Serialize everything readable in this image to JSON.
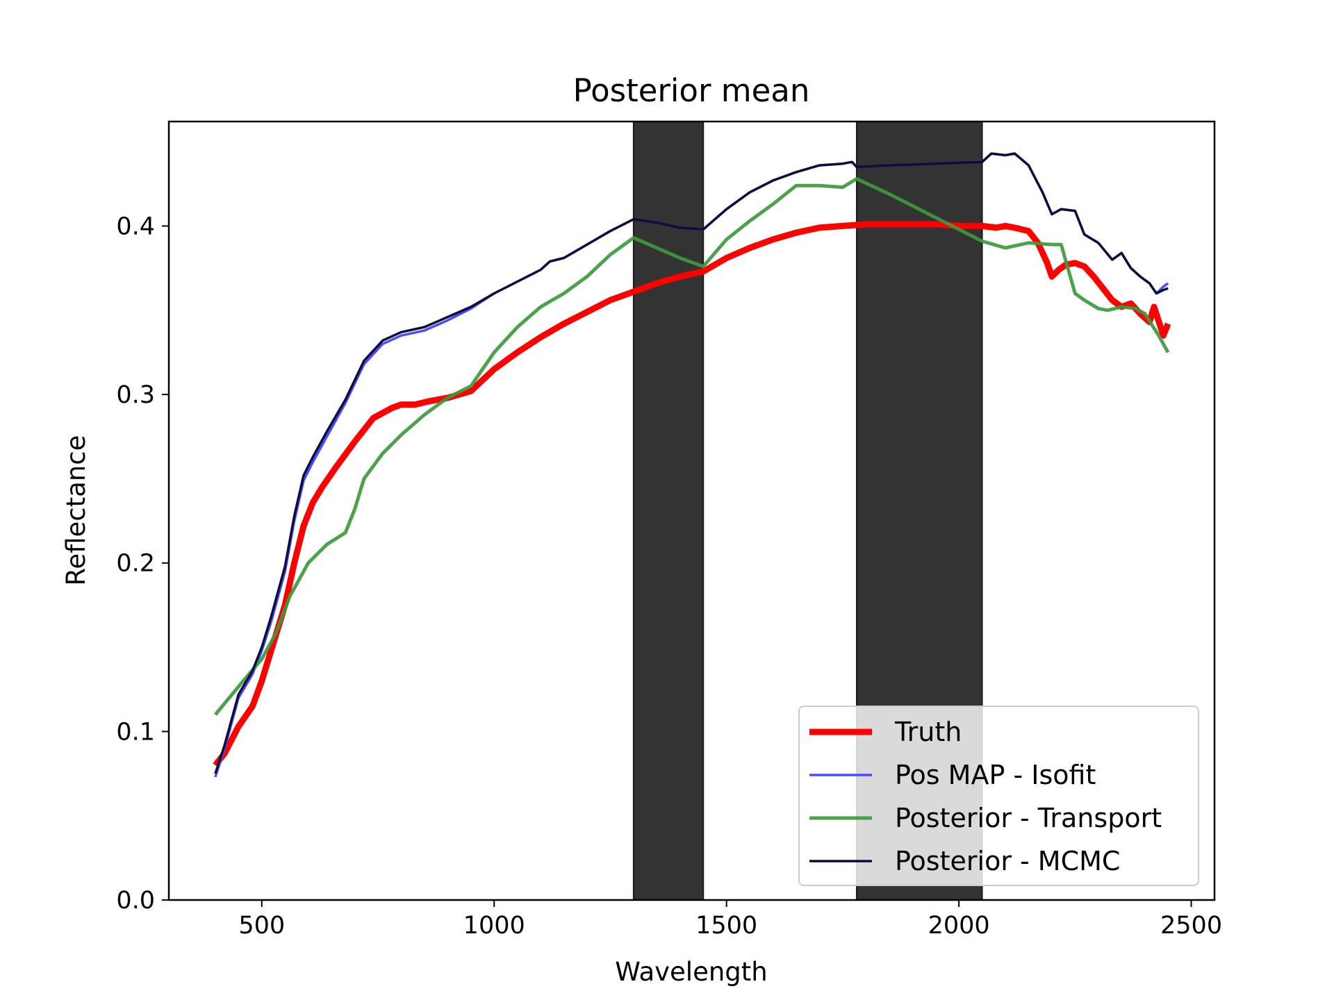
{
  "chart_data": {
    "type": "line",
    "title": "Posterior mean",
    "xlabel": "Wavelength",
    "ylabel": "Reflectance",
    "xlim": [
      300,
      2550
    ],
    "ylim": [
      0.0,
      0.462
    ],
    "x_ticks": [
      500,
      1000,
      1500,
      2000,
      2500
    ],
    "x_tick_labels": [
      "500",
      "1000",
      "1500",
      "2000",
      "2500"
    ],
    "y_ticks": [
      0.0,
      0.1,
      0.2,
      0.3,
      0.4
    ],
    "y_tick_labels": [
      "0.0",
      "0.1",
      "0.2",
      "0.3",
      "0.4"
    ],
    "grid": false,
    "legend_position": "lower-right",
    "shaded_regions": [
      {
        "x_start": 1300,
        "x_end": 1450,
        "color": "#333333"
      },
      {
        "x_start": 1780,
        "x_end": 2050,
        "color": "#333333"
      }
    ],
    "series": [
      {
        "name": "Truth",
        "color": "#ff0000",
        "line_width": 9,
        "opacity": 1,
        "x": [
          400,
          420,
          450,
          480,
          500,
          520,
          550,
          570,
          590,
          610,
          630,
          660,
          700,
          740,
          780,
          800,
          830,
          860,
          900,
          950,
          1000,
          1050,
          1100,
          1150,
          1200,
          1250,
          1300,
          1350,
          1400,
          1450,
          1500,
          1550,
          1600,
          1650,
          1700,
          1750,
          1800,
          1850,
          1900,
          1950,
          2000,
          2050,
          2080,
          2100,
          2120,
          2150,
          2170,
          2190,
          2200,
          2215,
          2230,
          2250,
          2270,
          2290,
          2310,
          2330,
          2350,
          2370,
          2390,
          2410,
          2420,
          2440,
          2450
        ],
        "y": [
          0.08,
          0.087,
          0.103,
          0.115,
          0.13,
          0.148,
          0.175,
          0.2,
          0.222,
          0.236,
          0.245,
          0.257,
          0.272,
          0.286,
          0.292,
          0.294,
          0.294,
          0.296,
          0.298,
          0.302,
          0.315,
          0.325,
          0.334,
          0.342,
          0.349,
          0.356,
          0.361,
          0.366,
          0.37,
          0.373,
          0.381,
          0.387,
          0.392,
          0.396,
          0.399,
          0.4,
          0.401,
          0.401,
          0.401,
          0.401,
          0.4,
          0.4,
          0.399,
          0.4,
          0.399,
          0.397,
          0.39,
          0.378,
          0.37,
          0.374,
          0.377,
          0.378,
          0.376,
          0.37,
          0.363,
          0.356,
          0.352,
          0.354,
          0.348,
          0.343,
          0.352,
          0.335,
          0.342
        ]
      },
      {
        "name": "Pos MAP - Isofit",
        "color": "#4a4aff",
        "line_width": 3.5,
        "opacity": 1,
        "x": [
          400,
          420,
          450,
          480,
          500,
          520,
          550,
          570,
          590,
          610,
          640,
          680,
          720,
          760,
          800,
          850,
          900,
          950,
          1000,
          1050,
          1100,
          1120,
          1150,
          1200,
          1250,
          1300,
          1350,
          1400,
          1450,
          1500,
          1550,
          1600,
          1650,
          1700,
          1750,
          1770,
          1780,
          1850,
          1950,
          2050,
          2070,
          2100,
          2120,
          2150,
          2180,
          2200,
          2220,
          2250,
          2270,
          2300,
          2330,
          2350,
          2370,
          2390,
          2410,
          2425,
          2440,
          2450
        ],
        "y": [
          0.073,
          0.09,
          0.12,
          0.134,
          0.148,
          0.165,
          0.195,
          0.225,
          0.249,
          0.26,
          0.275,
          0.295,
          0.318,
          0.33,
          0.335,
          0.338,
          0.344,
          0.351,
          0.36,
          0.367,
          0.374,
          0.379,
          0.381,
          0.389,
          0.397,
          0.404,
          0.402,
          0.399,
          0.398,
          0.41,
          0.42,
          0.427,
          0.432,
          0.436,
          0.437,
          0.438,
          0.435,
          0.436,
          0.437,
          0.438,
          0.443,
          0.442,
          0.443,
          0.436,
          0.42,
          0.407,
          0.41,
          0.409,
          0.395,
          0.39,
          0.38,
          0.384,
          0.375,
          0.37,
          0.366,
          0.36,
          0.364,
          0.366
        ]
      },
      {
        "name": "Posterior - Transport",
        "color": "#3d9a3d",
        "line_width": 5,
        "opacity": 0.92,
        "x": [
          400,
          430,
          460,
          500,
          530,
          560,
          600,
          640,
          680,
          700,
          720,
          760,
          800,
          850,
          900,
          950,
          1000,
          1050,
          1100,
          1150,
          1200,
          1250,
          1300,
          1350,
          1400,
          1450,
          1500,
          1550,
          1600,
          1650,
          1700,
          1750,
          1780,
          1850,
          1950,
          2050,
          2100,
          2150,
          2200,
          2220,
          2250,
          2270,
          2300,
          2320,
          2350,
          2380,
          2400,
          2430,
          2450
        ],
        "y": [
          0.11,
          0.12,
          0.13,
          0.143,
          0.158,
          0.18,
          0.2,
          0.211,
          0.218,
          0.232,
          0.25,
          0.265,
          0.276,
          0.288,
          0.298,
          0.305,
          0.325,
          0.34,
          0.352,
          0.36,
          0.37,
          0.383,
          0.393,
          0.387,
          0.381,
          0.376,
          0.392,
          0.403,
          0.413,
          0.424,
          0.424,
          0.423,
          0.428,
          0.419,
          0.405,
          0.391,
          0.387,
          0.39,
          0.389,
          0.389,
          0.36,
          0.356,
          0.351,
          0.35,
          0.352,
          0.351,
          0.348,
          0.335,
          0.325
        ]
      },
      {
        "name": "Posterior - MCMC",
        "color": "#0d0d3a",
        "line_width": 3.5,
        "opacity": 1,
        "x": [
          400,
          420,
          450,
          480,
          500,
          520,
          550,
          570,
          590,
          610,
          640,
          680,
          720,
          760,
          800,
          850,
          900,
          950,
          1000,
          1050,
          1100,
          1120,
          1150,
          1200,
          1250,
          1300,
          1350,
          1400,
          1450,
          1500,
          1550,
          1600,
          1650,
          1700,
          1750,
          1770,
          1780,
          1850,
          1950,
          2050,
          2070,
          2100,
          2120,
          2150,
          2180,
          2200,
          2220,
          2250,
          2270,
          2300,
          2330,
          2350,
          2370,
          2390,
          2410,
          2425,
          2440,
          2450
        ],
        "y": [
          0.075,
          0.092,
          0.122,
          0.136,
          0.15,
          0.168,
          0.198,
          0.228,
          0.252,
          0.263,
          0.278,
          0.297,
          0.32,
          0.332,
          0.337,
          0.34,
          0.346,
          0.352,
          0.36,
          0.367,
          0.374,
          0.379,
          0.381,
          0.389,
          0.397,
          0.404,
          0.402,
          0.399,
          0.398,
          0.41,
          0.42,
          0.427,
          0.432,
          0.436,
          0.437,
          0.438,
          0.435,
          0.436,
          0.437,
          0.438,
          0.443,
          0.442,
          0.443,
          0.436,
          0.42,
          0.407,
          0.41,
          0.409,
          0.395,
          0.39,
          0.38,
          0.384,
          0.375,
          0.37,
          0.366,
          0.36,
          0.362,
          0.363
        ]
      }
    ]
  }
}
